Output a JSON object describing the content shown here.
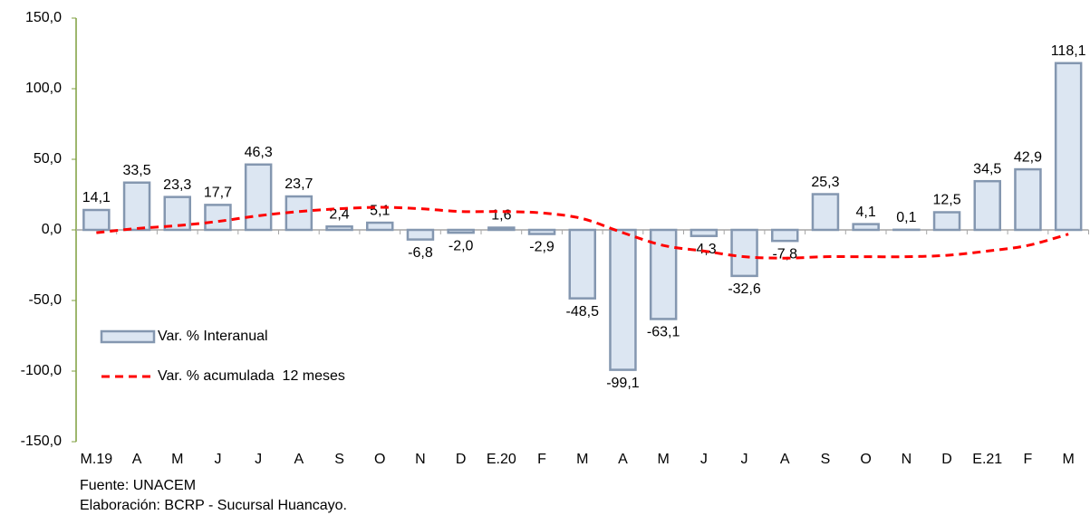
{
  "chart_data": {
    "type": "bar",
    "categories": [
      "M.19",
      "A",
      "M",
      "J",
      "J",
      "A",
      "S",
      "O",
      "N",
      "D",
      "E.20",
      "F",
      "M",
      "A",
      "M",
      "J",
      "J",
      "A",
      "S",
      "O",
      "N",
      "D",
      "E.21",
      "F",
      "M"
    ],
    "series": [
      {
        "name": "Var. % Interanual",
        "type": "bar",
        "color": "#dce6f2",
        "stroke": "#8497b0",
        "values": [
          14.1,
          33.5,
          23.3,
          17.7,
          46.3,
          23.7,
          2.4,
          5.1,
          -6.8,
          -2.0,
          1.6,
          -2.9,
          -48.5,
          -99.1,
          -63.1,
          -4.3,
          -32.6,
          -7.8,
          25.3,
          4.1,
          0.1,
          12.5,
          34.5,
          42.9,
          118.1
        ],
        "value_labels": [
          "14,1",
          "33,5",
          "23,3",
          "17,7",
          "46,3",
          "23,7",
          "2,4",
          "5,1",
          "-6,8",
          "-2,0",
          "1,6",
          "-2,9",
          "-48,5",
          "-99,1",
          "-63,1",
          "-4,3",
          "-32,6",
          "-7,8",
          "25,3",
          "4,1",
          "0,1",
          "12,5",
          "34,5",
          "42,9",
          "118,1"
        ]
      },
      {
        "name": "Var. % acumulada  12 meses",
        "type": "line",
        "color": "#ff0000",
        "values": [
          -2,
          1,
          3,
          6,
          10,
          13,
          15,
          16,
          15,
          13,
          13,
          12,
          8,
          -2,
          -11,
          -15,
          -19,
          -20,
          -19,
          -19,
          -19,
          -18,
          -15,
          -11,
          -3
        ]
      }
    ],
    "ylim": [
      -150,
      150
    ],
    "yticks": [
      {
        "value": -150,
        "label": "-150,0"
      },
      {
        "value": -100,
        "label": "-100,0"
      },
      {
        "value": -50,
        "label": "-50,0"
      },
      {
        "value": 0,
        "label": "0,0"
      },
      {
        "value": 50,
        "label": "50,0"
      },
      {
        "value": 100,
        "label": "100,0"
      },
      {
        "value": 150,
        "label": "150,0"
      }
    ],
    "notes": [
      "Fuente: UNACEM",
      "Elaboración: BCRP - Sucursal Huancayo."
    ]
  }
}
